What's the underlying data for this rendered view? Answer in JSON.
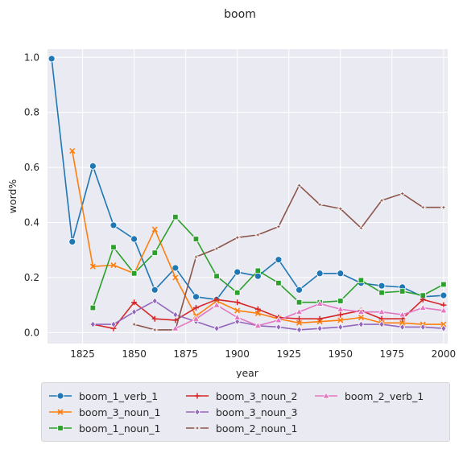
{
  "chart_data": {
    "type": "line",
    "title": "boom",
    "xlabel": "year",
    "ylabel": "word%",
    "xlim": [
      1808,
      2002
    ],
    "ylim": [
      -0.04,
      1.03
    ],
    "xticks": [
      1825,
      1850,
      1875,
      1900,
      1925,
      1950,
      1975,
      2000
    ],
    "yticks": [
      0.0,
      0.2,
      0.4,
      0.6,
      0.8,
      1.0
    ],
    "ytick_labels": [
      "0.0",
      "0.2",
      "0.4",
      "0.6",
      "0.8",
      "1.0"
    ],
    "grid": true,
    "legend_position": "bottom",
    "series": [
      {
        "name": "boom_1_verb_1",
        "color": "#1f77b4",
        "marker": "circle",
        "x": [
          1810,
          1820,
          1830,
          1840,
          1850,
          1860,
          1870,
          1880,
          1890,
          1900,
          1910,
          1920,
          1930,
          1940,
          1950,
          1960,
          1970,
          1980,
          1990,
          2000
        ],
        "y": [
          0.995,
          0.33,
          0.605,
          0.39,
          0.34,
          0.155,
          0.235,
          0.13,
          0.12,
          0.22,
          0.205,
          0.265,
          0.155,
          0.215,
          0.215,
          0.18,
          0.17,
          0.165,
          0.13,
          0.135
        ]
      },
      {
        "name": "boom_3_noun_1",
        "color": "#ff7f0e",
        "marker": "x",
        "x": [
          1820,
          1830,
          1840,
          1850,
          1860,
          1870,
          1880,
          1890,
          1900,
          1910,
          1920,
          1930,
          1940,
          1950,
          1960,
          1970,
          1980,
          1990,
          2000
        ],
        "y": [
          0.66,
          0.24,
          0.245,
          0.215,
          0.375,
          0.2,
          0.06,
          0.115,
          0.08,
          0.07,
          0.05,
          0.035,
          0.04,
          0.045,
          0.055,
          0.035,
          0.035,
          0.03,
          0.03
        ]
      },
      {
        "name": "boom_1_noun_1",
        "color": "#2ca02c",
        "marker": "square",
        "x": [
          1830,
          1840,
          1850,
          1860,
          1870,
          1880,
          1890,
          1900,
          1910,
          1920,
          1930,
          1940,
          1950,
          1960,
          1970,
          1980,
          1990,
          2000
        ],
        "y": [
          0.09,
          0.31,
          0.215,
          0.29,
          0.42,
          0.34,
          0.205,
          0.145,
          0.225,
          0.18,
          0.11,
          0.11,
          0.115,
          0.19,
          0.145,
          0.15,
          0.135,
          0.175
        ]
      },
      {
        "name": "boom_3_noun_2",
        "color": "#d62728",
        "marker": "plus",
        "x": [
          1830,
          1840,
          1850,
          1860,
          1870,
          1880,
          1890,
          1900,
          1910,
          1920,
          1930,
          1940,
          1950,
          1960,
          1970,
          1980,
          1990,
          2000
        ],
        "y": [
          0.03,
          0.015,
          0.11,
          0.05,
          0.045,
          0.09,
          0.12,
          0.11,
          0.085,
          0.055,
          0.05,
          0.05,
          0.065,
          0.08,
          0.05,
          0.05,
          0.12,
          0.1
        ]
      },
      {
        "name": "boom_3_noun_3",
        "color": "#9467bd",
        "marker": "diamond",
        "x": [
          1830,
          1840,
          1850,
          1860,
          1870,
          1880,
          1890,
          1900,
          1910,
          1920,
          1930,
          1940,
          1950,
          1960,
          1970,
          1980,
          1990,
          2000
        ],
        "y": [
          0.03,
          0.03,
          0.075,
          0.115,
          0.065,
          0.04,
          0.015,
          0.04,
          0.025,
          0.02,
          0.01,
          0.015,
          0.02,
          0.03,
          0.03,
          0.02,
          0.02,
          0.015
        ]
      },
      {
        "name": "boom_2_noun_1",
        "color": "#8c564b",
        "marker": "star",
        "x": [
          1850,
          1860,
          1870,
          1880,
          1890,
          1900,
          1910,
          1920,
          1930,
          1940,
          1950,
          1960,
          1970,
          1980,
          1990,
          2000
        ],
        "y": [
          0.03,
          0.01,
          0.01,
          0.275,
          0.305,
          0.345,
          0.355,
          0.385,
          0.535,
          0.465,
          0.45,
          0.38,
          0.48,
          0.505,
          0.455,
          0.455
        ]
      },
      {
        "name": "boom_2_verb_1",
        "color": "#e377c2",
        "marker": "triangle",
        "x": [
          1870,
          1880,
          1890,
          1900,
          1910,
          1920,
          1930,
          1940,
          1950,
          1960,
          1970,
          1980,
          1990,
          2000
        ],
        "y": [
          0.015,
          0.05,
          0.1,
          0.055,
          0.025,
          0.045,
          0.075,
          0.105,
          0.085,
          0.075,
          0.075,
          0.065,
          0.09,
          0.08
        ]
      }
    ]
  }
}
